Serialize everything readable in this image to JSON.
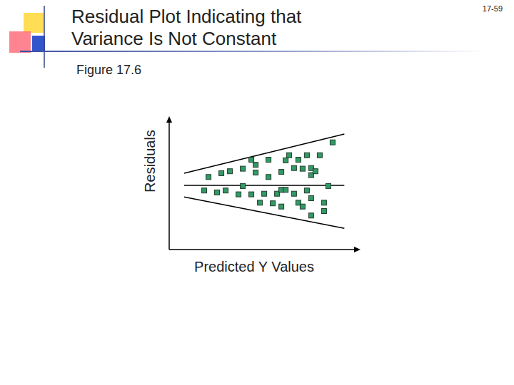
{
  "title": "Residual Plot Indicating that\nVariance Is Not Constant",
  "page_number": "17-59",
  "figure_label": "Figure 17.6",
  "chart_data": {
    "type": "scatter",
    "x_label": "Predicted Y Values",
    "y_label": "Residuals",
    "xlim": [
      0,
      100
    ],
    "ylim": [
      -10,
      10
    ],
    "tick_labels": false,
    "marker": "square",
    "color": "#339966",
    "x": [
      21.1,
      28.0,
      32.6,
      39.5,
      44.1,
      46.4,
      46.4,
      53.3,
      53.3,
      60.2,
      62.5,
      64.4,
      67.0,
      69.3,
      71.6,
      73.9,
      76.2,
      76.2,
      78.5,
      80.8,
      87.7,
      18.8,
      25.7,
      30.3,
      37.2,
      39.5,
      44.1,
      48.7,
      51.0,
      55.6,
      57.9,
      60.2,
      60.2,
      62.5,
      67.0,
      69.3,
      71.6,
      73.9,
      76.2,
      76.2,
      83.1,
      83.1,
      85.4
    ],
    "y": [
      1.3,
      1.9,
      2.2,
      2.6,
      4.0,
      3.2,
      2.0,
      4.0,
      1.3,
      2.1,
      3.9,
      4.7,
      2.7,
      4.0,
      2.6,
      4.7,
      2.7,
      1.6,
      2.2,
      4.7,
      6.7,
      -0.8,
      -1.1,
      -0.8,
      -1.4,
      -0.1,
      -1.4,
      -2.7,
      -1.3,
      -2.8,
      -1.3,
      -3.3,
      -0.7,
      -0.7,
      -1.3,
      -2.7,
      -3.3,
      -0.8,
      -4.7,
      -2.0,
      -2.7,
      -4.0,
      -0.1
    ],
    "reference_line": {
      "x": [
        8,
        94
      ],
      "y": [
        0,
        0
      ]
    },
    "bounds_upper": {
      "x": [
        8,
        94
      ],
      "y": [
        1.9,
        8.0
      ]
    },
    "bounds_lower": {
      "x": [
        8,
        94
      ],
      "y": [
        -1.8,
        -6.7
      ]
    }
  }
}
